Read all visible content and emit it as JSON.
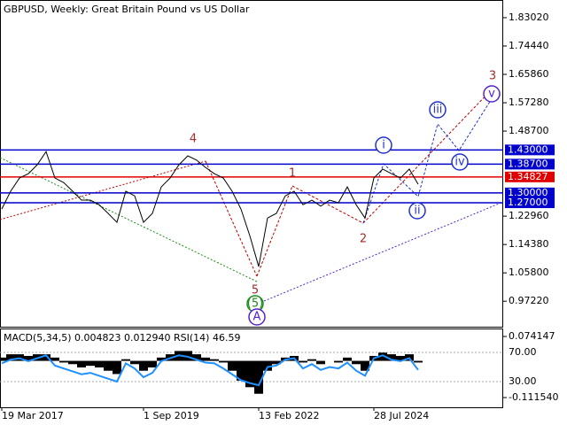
{
  "chart_data": [
    {
      "type": "line",
      "title": "GBPUSD, Weekly:  Great Britain Pound vs US Dollar",
      "categories": [
        "19 Mar 2017",
        null,
        null,
        null,
        null,
        null,
        null,
        null,
        null,
        null,
        null,
        null,
        null,
        null,
        null,
        null,
        "1 Sep 2019",
        null,
        null,
        null,
        null,
        null,
        null,
        null,
        null,
        null,
        null,
        null,
        null,
        "13 Feb 2022",
        null,
        null,
        null,
        null,
        null,
        null,
        null,
        null,
        null,
        null,
        null,
        null,
        "28 Jul 2024",
        null,
        null,
        null,
        null,
        null
      ],
      "series": [
        {
          "color": "#000000",
          "values": [
            1.251,
            1.305,
            1.345,
            1.358,
            1.385,
            1.425,
            1.345,
            1.331,
            1.305,
            1.278,
            1.278,
            1.264,
            1.238,
            1.211,
            1.305,
            1.291,
            1.211,
            1.238,
            1.318,
            1.345,
            1.385,
            1.412,
            1.399,
            1.377,
            1.358,
            1.345,
            1.305,
            1.251,
            1.17,
            1.077,
            1.224,
            1.238,
            1.291,
            1.305,
            1.264,
            1.278,
            1.26,
            1.278,
            1.27,
            1.318,
            1.264,
            1.224,
            1.345,
            1.372,
            1.358,
            1.345,
            1.372,
            1.326
          ]
        }
      ],
      "ylim": [
        0.895,
        1.881
      ],
      "yticks": [
        {
          "value": 1.8302,
          "label": "1.83020"
        },
        {
          "value": 1.7444,
          "label": "1.74440"
        },
        {
          "value": 1.6586,
          "label": "1.65860"
        },
        {
          "value": 1.5728,
          "label": "1.57280"
        },
        {
          "value": 1.487,
          "label": "1.48700"
        },
        {
          "value": 1.2296,
          "label": "1.22960"
        },
        {
          "value": 1.1438,
          "label": "1.14380"
        },
        {
          "value": 1.058,
          "label": "1.05800"
        },
        {
          "value": 0.9722,
          "label": "0.97220"
        }
      ],
      "levels": [
        {
          "value": 1.43,
          "label": "1.43000",
          "color": "#0000cc"
        },
        {
          "value": 1.387,
          "label": "1.38700",
          "color": "#0000cc"
        },
        {
          "value": 1.34827,
          "label": "1.34827",
          "color": "#e00000"
        },
        {
          "value": 1.3,
          "label": "1.30000",
          "color": "#0000cc"
        },
        {
          "value": 1.27,
          "label": "1.27000",
          "color": "#0000cc"
        }
      ],
      "wave_labels": [
        "4",
        "1",
        "2",
        "3",
        "5",
        "(5)",
        "A",
        "i",
        "ii",
        "iii",
        "iv",
        "v"
      ]
    },
    {
      "type": "bar",
      "title": "MACD(5,34,5) 0.004823 0.012940 RSI(14) 46.59",
      "series": [
        {
          "color": "#000000",
          "values": [
            0.01,
            0.02,
            0.02,
            0.015,
            0.02,
            0.02,
            0.01,
            -0.005,
            -0.01,
            -0.02,
            -0.015,
            -0.02,
            -0.03,
            -0.04,
            0.005,
            -0.01,
            -0.03,
            -0.02,
            0.01,
            0.02,
            0.03,
            0.03,
            0.02,
            0.01,
            0.005,
            -0.005,
            -0.03,
            -0.06,
            -0.08,
            -0.1,
            -0.03,
            -0.01,
            0.01,
            0.015,
            -0.005,
            0.005,
            -0.01,
            0.0,
            -0.005,
            0.01,
            -0.01,
            -0.03,
            0.015,
            0.025,
            0.02,
            0.015,
            0.02,
            -0.005
          ]
        },
        {
          "color": "#1e90ff",
          "axis": "y2",
          "values": [
            55,
            60,
            62,
            58,
            62,
            66,
            52,
            48,
            44,
            40,
            42,
            38,
            34,
            30,
            55,
            48,
            36,
            42,
            58,
            62,
            66,
            64,
            60,
            56,
            55,
            48,
            40,
            32,
            28,
            25,
            50,
            52,
            60,
            62,
            48,
            54,
            46,
            50,
            48,
            56,
            45,
            38,
            62,
            66,
            60,
            58,
            62,
            46
          ]
        }
      ],
      "ylim": [
        -0.1411,
        0.0957
      ],
      "yticks": [
        0.074147,
        {
          "value": -0.11154,
          "label": "-0.111540"
        }
      ],
      "y2lim": [
        -5.15,
        101.5
      ],
      "y2ticks": [
        {
          "value": 70,
          "label": "70.00"
        },
        {
          "value": 30,
          "label": "30.00"
        }
      ]
    }
  ]
}
